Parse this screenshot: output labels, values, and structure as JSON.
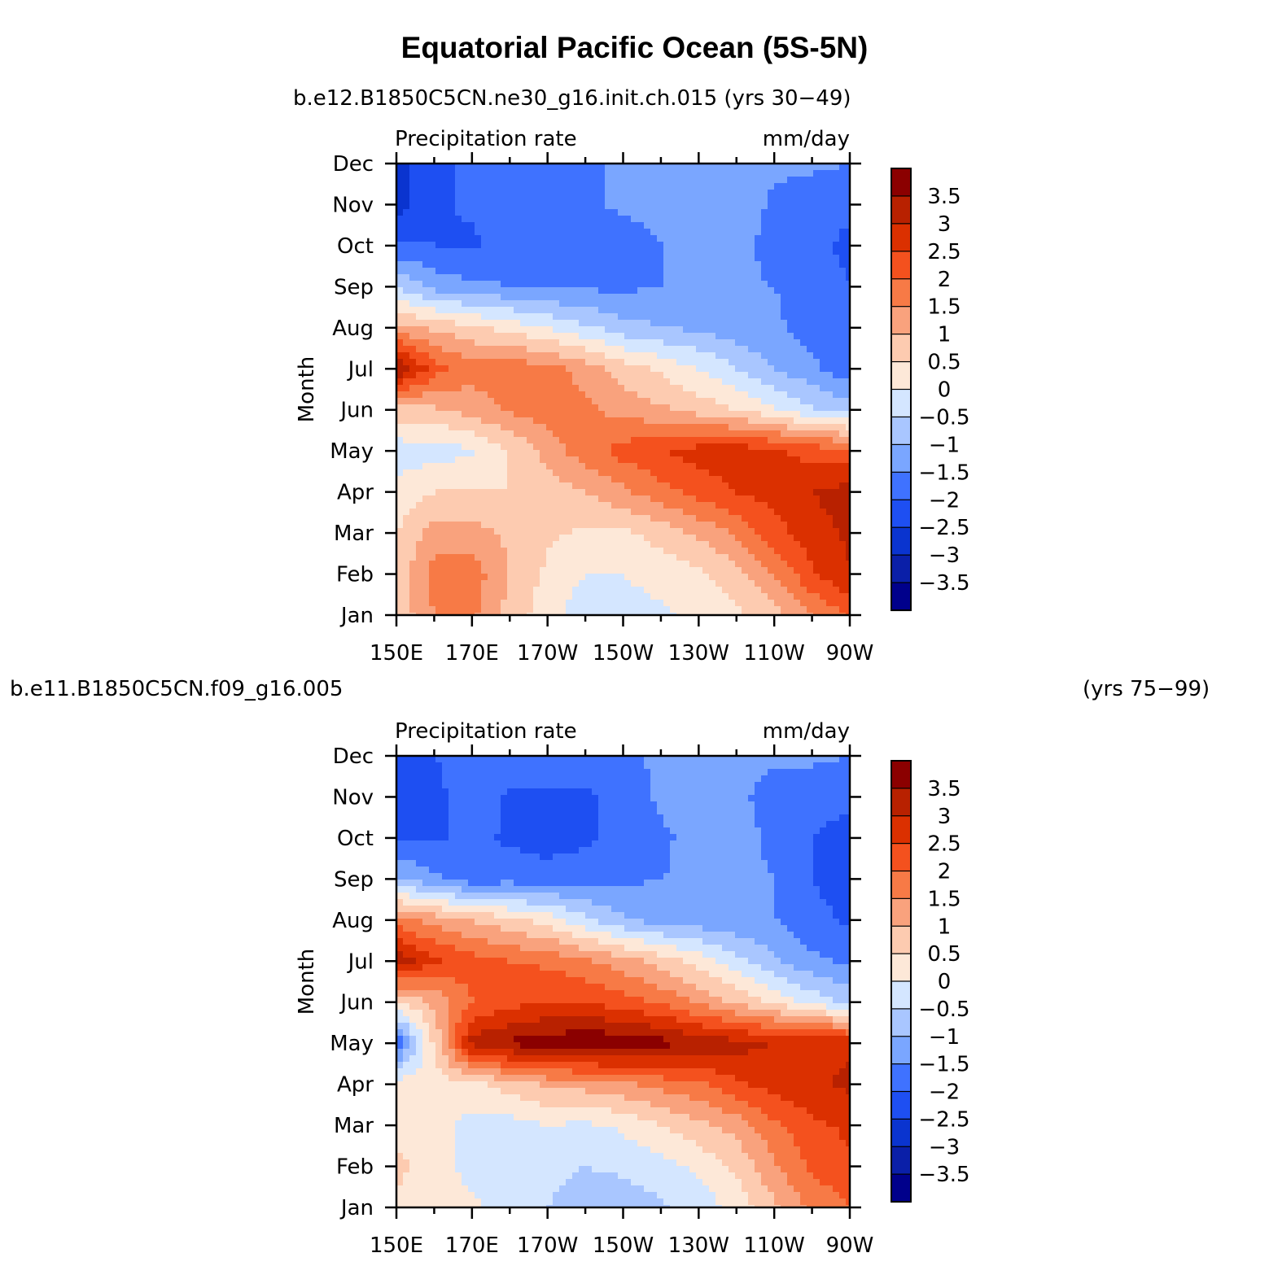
{
  "title": "Equatorial Pacific Ocean (5S-5N)",
  "colors": {
    "palette": [
      "#00008b",
      "#0a1fa8",
      "#0a34cf",
      "#1e4ff2",
      "#3f72ff",
      "#7aa6ff",
      "#a9c6ff",
      "#d4e6ff",
      "#fde8d8",
      "#fdcbb0",
      "#f9a27d",
      "#f77a46",
      "#f4511e",
      "#db3000",
      "#b82100",
      "#8b0000"
    ]
  },
  "chart_data": [
    {
      "type": "heatmap",
      "name": "top",
      "title": "b.e12.B1850C5CN.ne30_g16.init.ch.015 (yrs 30−49)",
      "variable_label": "Precipitation rate",
      "units_label": "mm/day",
      "ylabel": "Month",
      "xlabel": "",
      "x_ticks": [
        "150E",
        "170E",
        "170W",
        "150W",
        "130W",
        "110W",
        "90W"
      ],
      "y_ticks": [
        "Jan",
        "Feb",
        "Mar",
        "Apr",
        "May",
        "Jun",
        "Jul",
        "Aug",
        "Sep",
        "Oct",
        "Nov",
        "Dec"
      ],
      "x_range": [
        150,
        270
      ],
      "levels": [
        "3.5",
        "3",
        "2.5",
        "2",
        "1.5",
        "1",
        "0.5",
        "0",
        "−0.5",
        "−1",
        "−1.5",
        "−2",
        "−2.5",
        "−3",
        "−3.5"
      ],
      "longitudes": [
        150,
        160,
        170,
        180,
        190,
        200,
        210,
        220,
        230,
        240,
        250,
        260,
        270
      ],
      "values": [
        [
          0.6,
          1.5,
          1.6,
          0.8,
          0.2,
          -0.3,
          -0.2,
          -0.1,
          0.1,
          0.4,
          0.8,
          1.5,
          2.0
        ],
        [
          0.7,
          1.7,
          1.8,
          1.0,
          0.4,
          0.0,
          0.0,
          0.2,
          0.4,
          0.8,
          1.5,
          2.4,
          3.0
        ],
        [
          0.5,
          1.2,
          1.2,
          0.9,
          0.6,
          0.4,
          0.4,
          0.7,
          1.1,
          1.6,
          2.3,
          2.8,
          3.1
        ],
        [
          0.2,
          0.5,
          0.5,
          0.5,
          0.7,
          1.0,
          1.4,
          1.8,
          2.2,
          2.5,
          2.7,
          3.0,
          3.2
        ],
        [
          -0.3,
          -0.2,
          -0.1,
          0.5,
          1.2,
          1.8,
          2.2,
          2.5,
          2.7,
          2.8,
          2.6,
          2.3,
          2.2
        ],
        [
          0.8,
          0.9,
          1.2,
          1.6,
          1.8,
          1.6,
          1.3,
          1.1,
          0.8,
          0.5,
          0.1,
          -0.4,
          -0.8
        ],
        [
          3.6,
          2.2,
          1.7,
          1.8,
          1.7,
          1.3,
          0.8,
          0.4,
          0.0,
          -0.5,
          -1.0,
          -1.4,
          -1.8
        ],
        [
          1.2,
          0.9,
          0.6,
          0.3,
          0.0,
          -0.4,
          -0.8,
          -1.0,
          -1.1,
          -1.3,
          -1.4,
          -1.7,
          -1.9
        ],
        [
          -0.5,
          -1.2,
          -1.4,
          -1.5,
          -1.6,
          -1.6,
          -1.6,
          -1.5,
          -1.4,
          -1.4,
          -1.5,
          -1.8,
          -2.0
        ],
        [
          -1.9,
          -2.0,
          -2.1,
          -1.7,
          -1.7,
          -1.8,
          -1.8,
          -1.5,
          -1.3,
          -1.3,
          -1.7,
          -1.9,
          -2.1
        ],
        [
          -2.8,
          -2.1,
          -1.9,
          -1.8,
          -1.7,
          -1.6,
          -1.4,
          -1.3,
          -1.2,
          -1.2,
          -1.6,
          -1.8,
          -1.9
        ],
        [
          -2.6,
          -2.2,
          -1.8,
          -1.6,
          -1.5,
          -1.5,
          -1.5,
          -1.4,
          -1.3,
          -1.3,
          -1.4,
          -1.4,
          -1.5
        ]
      ]
    },
    {
      "type": "heatmap",
      "name": "bottom",
      "title": "b.e11.B1850C5CN.f09_g16.005",
      "title_right": "(yrs 75−99)",
      "variable_label": "Precipitation rate",
      "units_label": "mm/day",
      "ylabel": "Month",
      "xlabel": "",
      "x_ticks": [
        "150E",
        "170E",
        "170W",
        "150W",
        "130W",
        "110W",
        "90W"
      ],
      "y_ticks": [
        "Jan",
        "Feb",
        "Mar",
        "Apr",
        "May",
        "Jun",
        "Jul",
        "Aug",
        "Sep",
        "Oct",
        "Nov",
        "Dec"
      ],
      "x_range": [
        150,
        270
      ],
      "levels": [
        "3.5",
        "3",
        "2.5",
        "2",
        "1.5",
        "1",
        "0.5",
        "0",
        "−0.5",
        "−1",
        "−1.5",
        "−2",
        "−2.5",
        "−3",
        "−3.5"
      ],
      "longitudes": [
        150,
        160,
        170,
        180,
        190,
        200,
        210,
        220,
        230,
        240,
        250,
        260,
        270
      ],
      "values": [
        [
          0.4,
          0.3,
          0.1,
          -0.2,
          -0.5,
          -0.8,
          -0.8,
          -0.6,
          -0.3,
          0.2,
          0.9,
          1.6,
          2.0
        ],
        [
          0.6,
          0.3,
          -0.2,
          -0.3,
          -0.3,
          -0.5,
          -0.4,
          -0.2,
          0.1,
          0.6,
          1.4,
          2.1,
          2.4
        ],
        [
          0.4,
          0.2,
          -0.2,
          -0.2,
          0.0,
          -0.1,
          0.1,
          0.5,
          0.9,
          1.2,
          1.9,
          2.4,
          2.6
        ],
        [
          0.3,
          0.3,
          0.4,
          0.7,
          1.1,
          1.2,
          1.4,
          1.7,
          1.9,
          2.4,
          2.7,
          2.9,
          3.1
        ],
        [
          -2.0,
          0.6,
          3.2,
          3.6,
          3.8,
          3.9,
          3.9,
          3.7,
          3.4,
          3.2,
          3.0,
          2.9,
          2.9
        ],
        [
          0.4,
          1.1,
          2.0,
          2.3,
          2.5,
          2.5,
          2.2,
          1.9,
          1.4,
          0.9,
          0.4,
          -0.2,
          -0.6
        ],
        [
          3.4,
          2.6,
          2.2,
          2.0,
          1.9,
          1.6,
          1.2,
          0.8,
          0.3,
          -0.3,
          -0.9,
          -1.4,
          -1.6
        ],
        [
          1.7,
          1.3,
          1.0,
          0.6,
          0.3,
          -0.4,
          -0.9,
          -1.2,
          -1.3,
          -1.4,
          -1.5,
          -1.8,
          -2.1
        ],
        [
          -0.9,
          -1.4,
          -1.8,
          -1.7,
          -1.8,
          -1.7,
          -1.6,
          -1.5,
          -1.4,
          -1.3,
          -1.5,
          -2.0,
          -2.3
        ],
        [
          -2.1,
          -2.1,
          -1.8,
          -2.1,
          -2.2,
          -2.1,
          -1.8,
          -1.6,
          -1.3,
          -1.2,
          -1.7,
          -2.0,
          -2.2
        ],
        [
          -2.3,
          -2.2,
          -1.6,
          -2.1,
          -2.1,
          -2.1,
          -1.8,
          -1.4,
          -1.3,
          -1.4,
          -1.7,
          -1.8,
          -1.9
        ],
        [
          -2.2,
          -2.0,
          -1.7,
          -1.7,
          -1.7,
          -1.7,
          -1.6,
          -1.4,
          -1.3,
          -1.3,
          -1.4,
          -1.4,
          -1.5
        ]
      ]
    }
  ]
}
